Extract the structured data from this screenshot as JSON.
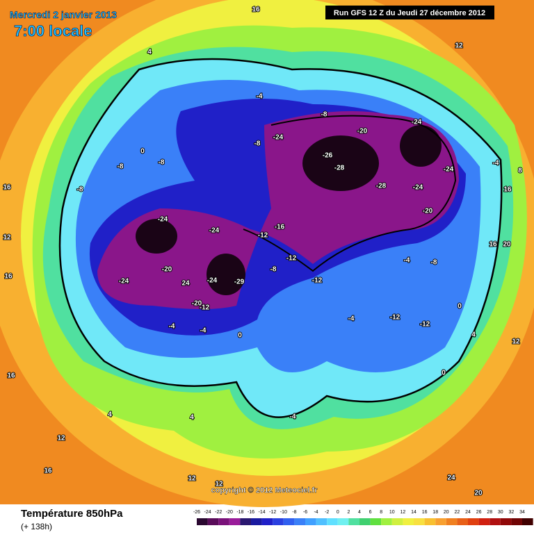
{
  "header": {
    "date": "Mercredi 2 janvier 2013",
    "time": "7:00 locale",
    "run": "Run GFS 12 Z du Jeudi 27 décembre 2012"
  },
  "copyright": "copyright © 2012 Meteociel.fr",
  "footer": {
    "title": "Température 850hPa",
    "lead": "(+ 138h)"
  },
  "legend": {
    "ticks": [
      -26,
      -24,
      -22,
      -20,
      -18,
      -16,
      -14,
      -12,
      -10,
      -8,
      -6,
      -4,
      -2,
      0,
      2,
      4,
      6,
      8,
      10,
      12,
      14,
      16,
      18,
      20,
      22,
      24,
      26,
      28,
      30,
      32,
      34
    ],
    "colors": [
      "#2a0830",
      "#5a0c5a",
      "#7a127a",
      "#9a1c9a",
      "#2a1870",
      "#1a1aa0",
      "#2020c8",
      "#2a40e0",
      "#3060f0",
      "#3a80f8",
      "#40a0ff",
      "#50c0ff",
      "#60e0ff",
      "#70f0f0",
      "#50e0a0",
      "#40d070",
      "#60e040",
      "#a0f040",
      "#d0f040",
      "#f0f040",
      "#f8e040",
      "#f8c030",
      "#f8a030",
      "#f08020",
      "#e86018",
      "#e04010",
      "#d02010",
      "#b01010",
      "#900808",
      "#700404",
      "#400000"
    ]
  },
  "contour_labels": [
    4,
    16,
    12,
    -4,
    -8,
    -20,
    -24,
    -24,
    -8,
    -26,
    -28,
    -28,
    -24,
    -24,
    -20,
    -4,
    -8,
    -8,
    0,
    -8,
    -24,
    -24,
    -16,
    -12,
    -20,
    24,
    -24,
    -24,
    -29,
    -20,
    -12,
    -4,
    -4,
    0,
    -8,
    -12,
    -12,
    -4,
    -12,
    -12,
    -4,
    -8,
    0,
    0,
    4,
    12,
    -4,
    4,
    4,
    16,
    12,
    16,
    16,
    12,
    16,
    12,
    12,
    24,
    20,
    16,
    20,
    16,
    8
  ]
}
